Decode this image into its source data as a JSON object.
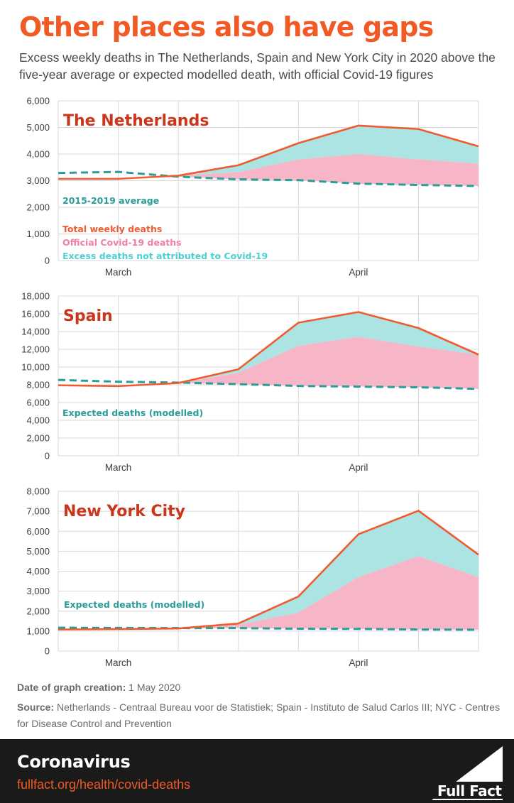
{
  "header": {
    "title": "Other places also have gaps",
    "subtitle": "Excess weekly deaths in The Netherlands, Spain and New York City in 2020 above the five-year average or expected modelled death, with official Covid-19 figures"
  },
  "colors": {
    "total": "#ef5b2f",
    "covid": "#f6b6c8",
    "excess": "#abe4e3",
    "baseline": "#2a9d9a",
    "panel_title": "#c9361b",
    "axis_text": "#3c3c3c",
    "grid": "#d9d9d9"
  },
  "chart_data": [
    {
      "type": "area",
      "title": "The Netherlands",
      "x_tick_labels": [
        {
          "label": "March",
          "week": 1
        },
        {
          "label": "April",
          "week": 5
        }
      ],
      "week": [
        0,
        1,
        2,
        3,
        4,
        5,
        6,
        7
      ],
      "ylim": [
        0,
        6000
      ],
      "yticks": [
        "0",
        "1,000",
        "2,000",
        "3,000",
        "4,000",
        "5,000",
        "6,000"
      ],
      "grid": true,
      "series": [
        {
          "name": "Total weekly deaths",
          "role": "total",
          "values": [
            3070,
            3070,
            3190,
            3580,
            4410,
            5070,
            4940,
            4290
          ]
        },
        {
          "name": "Official Covid-19 deaths",
          "role": "covid_top",
          "values": [
            3070,
            3070,
            3190,
            3320,
            3800,
            4000,
            3800,
            3640
          ]
        },
        {
          "name": "2015-2019 average",
          "role": "baseline",
          "values": [
            3290,
            3330,
            3150,
            3050,
            3020,
            2890,
            2840,
            2800
          ]
        }
      ],
      "legend": [
        {
          "text": "2015-2019 average",
          "color": "#2a9d9a"
        },
        {
          "text": "Total weekly deaths",
          "color": "#ef5b2f"
        },
        {
          "text": "Official Covid-19 deaths",
          "color": "#f07fa6"
        },
        {
          "text": "Excess deaths not attributed to Covid-19",
          "color": "#4fd0d0"
        }
      ]
    },
    {
      "type": "area",
      "title": "Spain",
      "x_tick_labels": [
        {
          "label": "March",
          "week": 1
        },
        {
          "label": "April",
          "week": 5
        }
      ],
      "week": [
        0,
        1,
        2,
        3,
        4,
        5,
        6,
        7
      ],
      "ylim": [
        0,
        18000
      ],
      "yticks": [
        "0",
        "2,000",
        "4,000",
        "6,000",
        "8,000",
        "10,000",
        "12,000",
        "14,000",
        "16,000",
        "18,000"
      ],
      "grid": true,
      "series": [
        {
          "name": "Total weekly deaths",
          "role": "total",
          "values": [
            7950,
            7850,
            8200,
            9750,
            15000,
            16200,
            14400,
            11400
          ]
        },
        {
          "name": "Official Covid-19 deaths",
          "role": "covid_top",
          "values": [
            7950,
            7850,
            8200,
            9350,
            12400,
            13400,
            12300,
            11400
          ]
        },
        {
          "name": "Expected deaths (modelled)",
          "role": "baseline",
          "values": [
            8550,
            8350,
            8250,
            8080,
            7870,
            7800,
            7720,
            7540
          ]
        }
      ],
      "legend": [
        {
          "text": "Expected deaths (modelled)",
          "color": "#2a9d9a"
        }
      ]
    },
    {
      "type": "area",
      "title": "New York City",
      "x_tick_labels": [
        {
          "label": "March",
          "week": 1
        },
        {
          "label": "April",
          "week": 5
        }
      ],
      "week": [
        0,
        1,
        2,
        3,
        4,
        5,
        6,
        7
      ],
      "ylim": [
        0,
        8000
      ],
      "yticks": [
        "0",
        "1,000",
        "2,000",
        "3,000",
        "4,000",
        "5,000",
        "6,000",
        "7,000",
        "8,000"
      ],
      "grid": true,
      "series": [
        {
          "name": "Total weekly deaths",
          "role": "total",
          "values": [
            1080,
            1100,
            1130,
            1380,
            2730,
            5850,
            7030,
            4830
          ]
        },
        {
          "name": "Official Covid-19 deaths",
          "role": "covid_top",
          "values": [
            1080,
            1100,
            1130,
            1320,
            1930,
            3710,
            4750,
            3700
          ]
        },
        {
          "name": "Expected deaths (modelled)",
          "role": "baseline",
          "values": [
            1170,
            1160,
            1150,
            1150,
            1120,
            1110,
            1080,
            1070
          ]
        }
      ],
      "legend": [
        {
          "text": "Expected deaths (modelled)",
          "color": "#2a9d9a"
        }
      ]
    }
  ],
  "meta": {
    "date_label": "Date of graph creation:",
    "date_value": "1 May 2020",
    "source_label": "Source:",
    "source_text": "Netherlands - Centraal Bureau voor de Statistiek; Spain - Instituto de Salud Carlos III; NYC - Centres for Disease Control and Prevention"
  },
  "footer": {
    "topic": "Coronavirus",
    "url": "fullfact.org/health/covid-deaths",
    "logo_text": "Full Fact"
  }
}
